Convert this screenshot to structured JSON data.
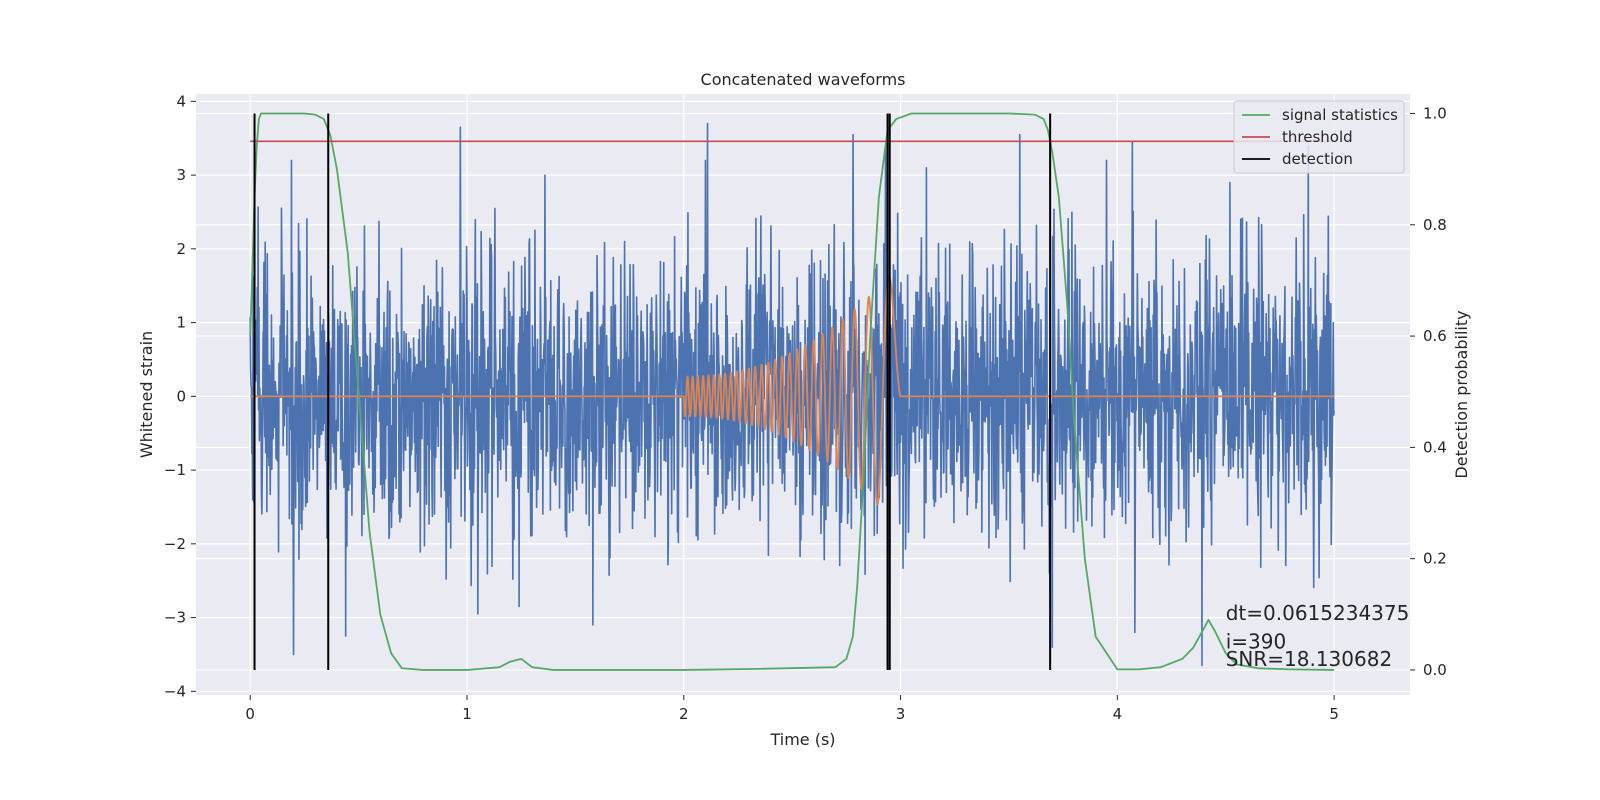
{
  "chart_data": {
    "type": "line",
    "title": "Concatenated waveforms",
    "xlabel": "Time (s)",
    "ylabel": "Whitened strain",
    "y2label": "Detection probability",
    "xlim": [
      -0.25,
      5.35
    ],
    "ylim": [
      -4.05,
      4.1
    ],
    "y2lim": [
      -0.045,
      1.035
    ],
    "x_ticks": [
      0,
      1,
      2,
      3,
      4,
      5
    ],
    "x_tick_labels": [
      "0",
      "1",
      "2",
      "3",
      "4",
      "5"
    ],
    "y_ticks": [
      -4,
      -3,
      -2,
      -1,
      0,
      1,
      2,
      3,
      4
    ],
    "y_tick_labels": [
      "−4",
      "−3",
      "−2",
      "−1",
      "0",
      "1",
      "2",
      "3",
      "4"
    ],
    "y2_ticks": [
      0.0,
      0.2,
      0.4,
      0.6,
      0.8,
      1.0
    ],
    "y2_tick_labels": [
      "0.0",
      "0.2",
      "0.4",
      "0.6",
      "0.8",
      "1.0"
    ],
    "grid": true,
    "legend_position": "top-right",
    "colors": {
      "strain": "#4c72b0",
      "signal": "#dd8452",
      "statistics": "#55a868",
      "threshold": "#c44e52",
      "detection": "#000000",
      "axes_bg": "#eaeaf2",
      "grid": "#ffffff"
    },
    "series": [
      {
        "name": "",
        "axis": "left",
        "kind": "noise",
        "x_range": [
          0,
          5
        ],
        "spikes": [
          [
            0.19,
            3.2
          ],
          [
            0.44,
            -3.25
          ],
          [
            0.97,
            3.65
          ],
          [
            1.24,
            -2.85
          ],
          [
            1.36,
            3.0
          ],
          [
            2.1,
            3.2
          ],
          [
            2.11,
            3.7
          ],
          [
            2.78,
            3.55
          ],
          [
            2.93,
            3.4
          ],
          [
            2.95,
            -3.7
          ],
          [
            3.55,
            3.55
          ],
          [
            3.7,
            -3.4
          ],
          [
            3.95,
            3.2
          ],
          [
            4.08,
            -3.2
          ],
          [
            4.07,
            3.45
          ],
          [
            4.39,
            -3.65
          ],
          [
            4.88,
            3.4
          ],
          [
            1.05,
            -2.95
          ],
          [
            1.58,
            -3.1
          ],
          [
            0.2,
            -3.5
          ],
          [
            3.12,
            3.1
          ],
          [
            4.52,
            2.9
          ]
        ]
      },
      {
        "name": "",
        "axis": "left",
        "kind": "chirp",
        "start": 2.0,
        "end": 3.0,
        "amp_start": 0.27,
        "amp_end": 1.8,
        "cycles": 27
      },
      {
        "name": "signal statistics",
        "axis": "right",
        "x": [
          0.0,
          0.01,
          0.02,
          0.03,
          0.04,
          0.05,
          0.07,
          0.1,
          0.15,
          0.25,
          0.3,
          0.34,
          0.37,
          0.4,
          0.45,
          0.5,
          0.55,
          0.6,
          0.65,
          0.7,
          0.8,
          1.0,
          1.15,
          1.2,
          1.25,
          1.3,
          1.4,
          2.0,
          2.35,
          2.7,
          2.75,
          2.78,
          2.8,
          2.83,
          2.86,
          2.9,
          2.94,
          2.98,
          3.05,
          3.2,
          3.5,
          3.62,
          3.66,
          3.68,
          3.7,
          3.73,
          3.77,
          3.8,
          3.85,
          3.9,
          4.0,
          4.1,
          4.2,
          4.3,
          4.35,
          4.4,
          4.42,
          4.45,
          4.5,
          4.55,
          4.65,
          4.8,
          5.0
        ],
        "values": [
          0.6,
          0.72,
          0.85,
          0.94,
          0.99,
          1.0,
          1.0,
          1.0,
          1.0,
          1.0,
          0.998,
          0.99,
          0.96,
          0.9,
          0.75,
          0.5,
          0.25,
          0.1,
          0.03,
          0.003,
          0.0,
          0.0,
          0.005,
          0.015,
          0.02,
          0.005,
          0.0,
          0.0,
          0.002,
          0.005,
          0.02,
          0.06,
          0.15,
          0.35,
          0.6,
          0.85,
          0.97,
          0.99,
          1.0,
          1.0,
          1.0,
          0.998,
          0.99,
          0.97,
          0.93,
          0.85,
          0.65,
          0.45,
          0.2,
          0.06,
          0.001,
          0.001,
          0.005,
          0.02,
          0.04,
          0.075,
          0.09,
          0.07,
          0.03,
          0.01,
          0.003,
          0.001,
          0.0
        ]
      },
      {
        "name": "threshold",
        "axis": "right",
        "x": [
          0.0,
          5.0
        ],
        "values": [
          0.95,
          0.95
        ]
      },
      {
        "name": "detection",
        "axis": "right",
        "kind": "vlines",
        "x": [
          0.02,
          0.36,
          2.94,
          2.95,
          3.69
        ],
        "ymin": 0.0,
        "ymax": 1.0
      }
    ],
    "annotations": [
      {
        "text": "dt=0.0615234375",
        "x": 4.5,
        "y": -3.03
      },
      {
        "text": " i=390",
        "x": 4.5,
        "y": -3.42
      },
      {
        "text": "SNR=18.130682",
        "x": 4.5,
        "y": -3.66
      }
    ]
  }
}
